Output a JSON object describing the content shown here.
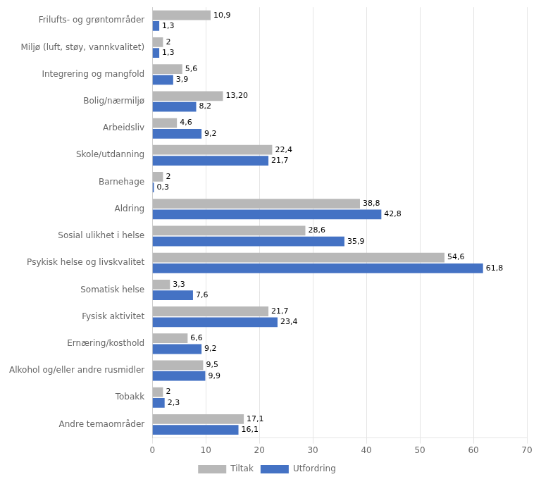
{
  "chart_data": {
    "type": "bar",
    "orientation": "horizontal",
    "categories": [
      "Andre temaområder",
      "Tobakk",
      "Alkohol og/eller andre rusmidler",
      "Ernæring/kosthold",
      "Fysisk aktivitet",
      "Somatisk helse",
      "Psykisk helse og livskvalitet",
      "Sosial ulikhet i helse",
      "Aldring",
      "Barnehage",
      "Skole/utdanning",
      "Arbeidsliv",
      "Bolig/nærmiljø",
      "Integrering og mangfold",
      "Miljø (luft, støy, vannkvalitet)",
      "Frilufts- og grøntområder"
    ],
    "series": [
      {
        "name": "Tiltak",
        "color": "#B8B8B8",
        "values": [
          17.1,
          2.0,
          9.5,
          6.6,
          21.7,
          3.3,
          54.6,
          28.6,
          38.8,
          2.0,
          22.4,
          4.6,
          13.2,
          5.6,
          2.0,
          10.9
        ],
        "value_labels": [
          "17,1",
          "2",
          "9,5",
          "6,6",
          "21,7",
          "3,3",
          "54,6",
          "28,6",
          "38,8",
          "2",
          "22,4",
          "4,6",
          "13,20",
          "5,6",
          "2",
          "10,9"
        ]
      },
      {
        "name": "Utfordring",
        "color": "#4472C4",
        "values": [
          16.1,
          2.3,
          9.9,
          9.2,
          23.4,
          7.6,
          61.8,
          35.9,
          42.8,
          0.3,
          21.7,
          9.2,
          8.2,
          3.9,
          1.3,
          1.3
        ],
        "value_labels": [
          "16,1",
          "2,3",
          "9,9",
          "9,2",
          "23,4",
          "7,6",
          "61,8",
          "35,9",
          "42,8",
          "0,3",
          "21,7",
          "9,2",
          "8,2",
          "3,9",
          "1,3",
          "1,3"
        ]
      }
    ],
    "xlim": [
      0,
      70
    ],
    "xticks": [
      0,
      10,
      20,
      30,
      40,
      50,
      60,
      70
    ],
    "grid": true,
    "legend": "bottom",
    "data_labels": true
  }
}
